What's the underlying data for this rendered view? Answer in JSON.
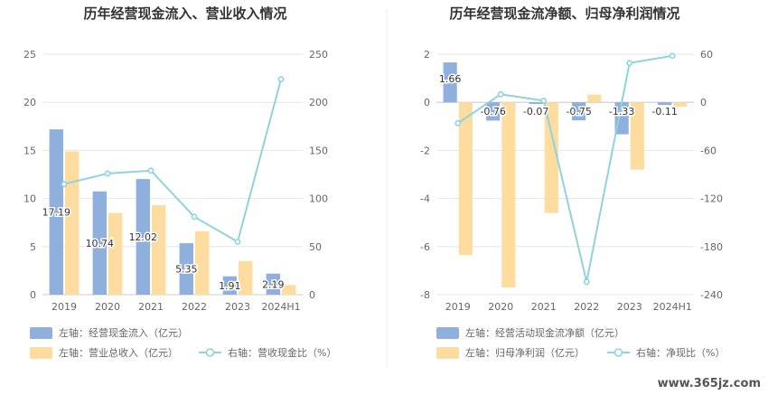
{
  "watermark": "www.365jz.com",
  "chart_data": [
    {
      "type": "bar",
      "title": "历年经营现金流入、营业收入情况",
      "categories": [
        "2019",
        "2020",
        "2021",
        "2022",
        "2023",
        "2024H1"
      ],
      "y_left": {
        "min": 0,
        "max": 25,
        "ticks": [
          0,
          5,
          10,
          15,
          20,
          25
        ]
      },
      "y_right": {
        "min": 0,
        "max": 250,
        "ticks": [
          0,
          50,
          100,
          150,
          200,
          250
        ]
      },
      "grid": true,
      "legend_position": "bottom",
      "series": [
        {
          "name": "左轴：经营现金流入（亿元）",
          "kind": "bar",
          "axis": "left",
          "color": "#8FB0DD",
          "values": [
            17.19,
            10.74,
            12.02,
            5.35,
            1.91,
            2.19
          ],
          "labels": [
            "17.19",
            "10.74",
            "12.02",
            "5.35",
            "1.91",
            "2.19"
          ]
        },
        {
          "name": "左轴：营业总收入（亿元）",
          "kind": "bar",
          "axis": "left",
          "color": "#FDDC9F",
          "values": [
            14.9,
            8.5,
            9.3,
            6.6,
            3.5,
            1.0
          ]
        },
        {
          "name": "右轴：营收现金比（%）",
          "kind": "line",
          "axis": "right",
          "color": "#8ED3DD",
          "values": [
            115,
            126,
            129,
            81,
            55,
            224
          ]
        }
      ]
    },
    {
      "type": "bar",
      "title": "历年经营现金流净额、归母净利润情况",
      "categories": [
        "2019",
        "2020",
        "2021",
        "2022",
        "2023",
        "2024H1"
      ],
      "y_left": {
        "min": -8,
        "max": 2,
        "ticks": [
          -8,
          -6,
          -4,
          -2,
          0,
          2
        ]
      },
      "y_right": {
        "min": -240,
        "max": 60,
        "ticks": [
          -240,
          -180,
          -120,
          -60,
          0,
          60
        ]
      },
      "grid": true,
      "legend_position": "bottom",
      "series": [
        {
          "name": "左轴：经营活动现金流净额（亿元）",
          "kind": "bar",
          "axis": "left",
          "color": "#8FB0DD",
          "values": [
            1.66,
            -0.76,
            -0.07,
            -0.75,
            -1.33,
            -0.11
          ],
          "labels": [
            "1.66",
            "-0.76",
            "-0.07",
            "-0.75",
            "-1.33",
            "-0.11"
          ]
        },
        {
          "name": "左轴：归母净利润（亿元）",
          "kind": "bar",
          "axis": "left",
          "color": "#FDDC9F",
          "values": [
            -6.35,
            -7.7,
            -4.6,
            0.32,
            -2.8,
            -0.18
          ]
        },
        {
          "name": "右轴：净现比（%）",
          "kind": "line",
          "axis": "right",
          "color": "#8ED3DD",
          "values": [
            -26,
            10,
            2,
            -224,
            49,
            58
          ]
        }
      ]
    }
  ]
}
